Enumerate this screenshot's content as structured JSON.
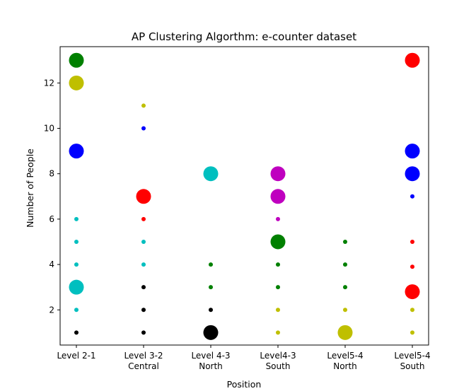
{
  "chart_data": {
    "type": "scatter",
    "title": "AP Clustering Algorthm: e-counter dataset",
    "xlabel": "Position",
    "ylabel": "Number of People",
    "categories": [
      [
        "Level 2-1"
      ],
      [
        "Level 3-2",
        "Central"
      ],
      [
        "Level 4-3",
        "North"
      ],
      [
        "Level4-3",
        "South"
      ],
      [
        "Level5-4",
        "North"
      ],
      [
        "Level5-4",
        "South"
      ]
    ],
    "yticks": [
      2,
      4,
      6,
      8,
      10,
      12
    ],
    "ylim": [
      0.45,
      13.6
    ],
    "grid": false,
    "colors": {
      "green": "#008000",
      "yellow": "#bfbf00",
      "blue": "#0000ff",
      "cyan": "#00bfbf",
      "black": "#000000",
      "red": "#ff0000",
      "magenta": "#bf00bf"
    },
    "points": [
      {
        "x": 0,
        "y": 13,
        "color": "green",
        "size": "large"
      },
      {
        "x": 0,
        "y": 12,
        "color": "yellow",
        "size": "large"
      },
      {
        "x": 0,
        "y": 9,
        "color": "blue",
        "size": "large"
      },
      {
        "x": 0,
        "y": 6,
        "color": "cyan",
        "size": "small"
      },
      {
        "x": 0,
        "y": 5,
        "color": "cyan",
        "size": "small"
      },
      {
        "x": 0,
        "y": 4,
        "color": "cyan",
        "size": "small"
      },
      {
        "x": 0,
        "y": 3,
        "color": "cyan",
        "size": "large"
      },
      {
        "x": 0,
        "y": 2,
        "color": "cyan",
        "size": "small"
      },
      {
        "x": 0,
        "y": 1,
        "color": "black",
        "size": "small"
      },
      {
        "x": 1,
        "y": 11,
        "color": "yellow",
        "size": "small"
      },
      {
        "x": 1,
        "y": 10,
        "color": "blue",
        "size": "small"
      },
      {
        "x": 1,
        "y": 7,
        "color": "red",
        "size": "large"
      },
      {
        "x": 1,
        "y": 6,
        "color": "red",
        "size": "small"
      },
      {
        "x": 1,
        "y": 5,
        "color": "cyan",
        "size": "small"
      },
      {
        "x": 1,
        "y": 4,
        "color": "cyan",
        "size": "small"
      },
      {
        "x": 1,
        "y": 3,
        "color": "black",
        "size": "small"
      },
      {
        "x": 1,
        "y": 2,
        "color": "black",
        "size": "small"
      },
      {
        "x": 1,
        "y": 1,
        "color": "black",
        "size": "small"
      },
      {
        "x": 2,
        "y": 8,
        "color": "cyan",
        "size": "large"
      },
      {
        "x": 2,
        "y": 4,
        "color": "green",
        "size": "small"
      },
      {
        "x": 2,
        "y": 3,
        "color": "green",
        "size": "small"
      },
      {
        "x": 2,
        "y": 2,
        "color": "black",
        "size": "small"
      },
      {
        "x": 2,
        "y": 1,
        "color": "black",
        "size": "large"
      },
      {
        "x": 3,
        "y": 8,
        "color": "magenta",
        "size": "large"
      },
      {
        "x": 3,
        "y": 7,
        "color": "magenta",
        "size": "large"
      },
      {
        "x": 3,
        "y": 6,
        "color": "magenta",
        "size": "small"
      },
      {
        "x": 3,
        "y": 5,
        "color": "green",
        "size": "large"
      },
      {
        "x": 3,
        "y": 4,
        "color": "green",
        "size": "small"
      },
      {
        "x": 3,
        "y": 3,
        "color": "green",
        "size": "small"
      },
      {
        "x": 3,
        "y": 2,
        "color": "yellow",
        "size": "small"
      },
      {
        "x": 3,
        "y": 1,
        "color": "yellow",
        "size": "small"
      },
      {
        "x": 4,
        "y": 5,
        "color": "green",
        "size": "small"
      },
      {
        "x": 4,
        "y": 4,
        "color": "green",
        "size": "small"
      },
      {
        "x": 4,
        "y": 3,
        "color": "green",
        "size": "small"
      },
      {
        "x": 4,
        "y": 2,
        "color": "yellow",
        "size": "small"
      },
      {
        "x": 4,
        "y": 1,
        "color": "yellow",
        "size": "large"
      },
      {
        "x": 5,
        "y": 13,
        "color": "red",
        "size": "large"
      },
      {
        "x": 5,
        "y": 9,
        "color": "blue",
        "size": "large"
      },
      {
        "x": 5,
        "y": 8,
        "color": "blue",
        "size": "large"
      },
      {
        "x": 5,
        "y": 7,
        "color": "blue",
        "size": "small"
      },
      {
        "x": 5,
        "y": 5,
        "color": "red",
        "size": "small"
      },
      {
        "x": 5,
        "y": 3.9,
        "color": "red",
        "size": "small"
      },
      {
        "x": 5,
        "y": 2.8,
        "color": "red",
        "size": "large"
      },
      {
        "x": 5,
        "y": 2,
        "color": "yellow",
        "size": "small"
      },
      {
        "x": 5,
        "y": 1,
        "color": "yellow",
        "size": "small"
      }
    ]
  }
}
